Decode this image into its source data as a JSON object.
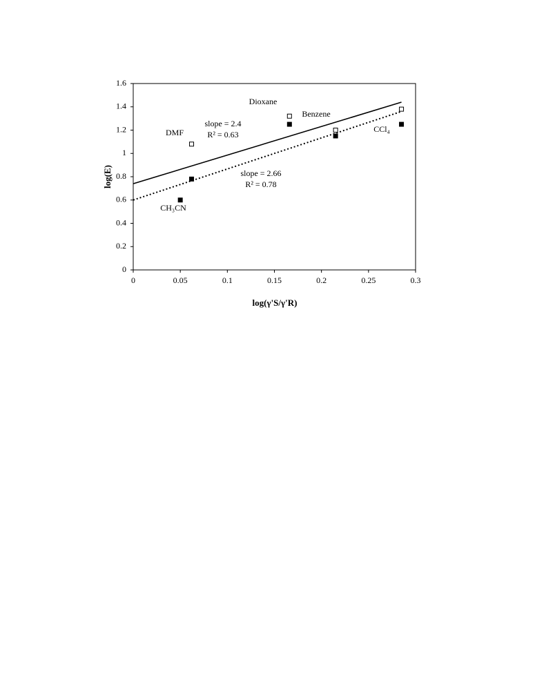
{
  "chart_data": {
    "type": "scatter",
    "x_label": "log(γ'S/γ'R)",
    "y_label": "log(E)",
    "xlim": [
      0,
      0.3
    ],
    "xticks": [
      0,
      0.05,
      0.1,
      0.15,
      0.2,
      0.25,
      0.3
    ],
    "ylim": [
      0,
      1.6
    ],
    "yticks": [
      0,
      0.2,
      0.4,
      0.6,
      0.8,
      1,
      1.2,
      1.4,
      1.6
    ],
    "grid": false,
    "series": [
      {
        "marker": "open",
        "color": "#000000",
        "x": [
          0.062,
          0.166,
          0.215,
          0.285
        ],
        "values": [
          1.08,
          1.32,
          1.2,
          1.38
        ]
      },
      {
        "marker": "filled",
        "color": "#000000",
        "x": [
          0.05,
          0.062,
          0.166,
          0.215,
          0.285
        ],
        "values": [
          0.6,
          0.78,
          1.25,
          1.15,
          1.25
        ]
      }
    ],
    "fits": [
      {
        "dash": false,
        "color": "#000000",
        "x": [
          0,
          0.285
        ],
        "values": [
          0.74,
          1.44
        ]
      },
      {
        "dash": true,
        "color": "#000000",
        "x": [
          0,
          0.285
        ],
        "values": [
          0.6,
          1.36
        ]
      }
    ],
    "annotations": [
      "DMF",
      "Dioxane",
      "Benzene",
      "CCl₄",
      "CH₃CN",
      "slope = 2.4",
      "R² = 0.63",
      "slope = 2.66",
      "R² = 0.78"
    ]
  }
}
